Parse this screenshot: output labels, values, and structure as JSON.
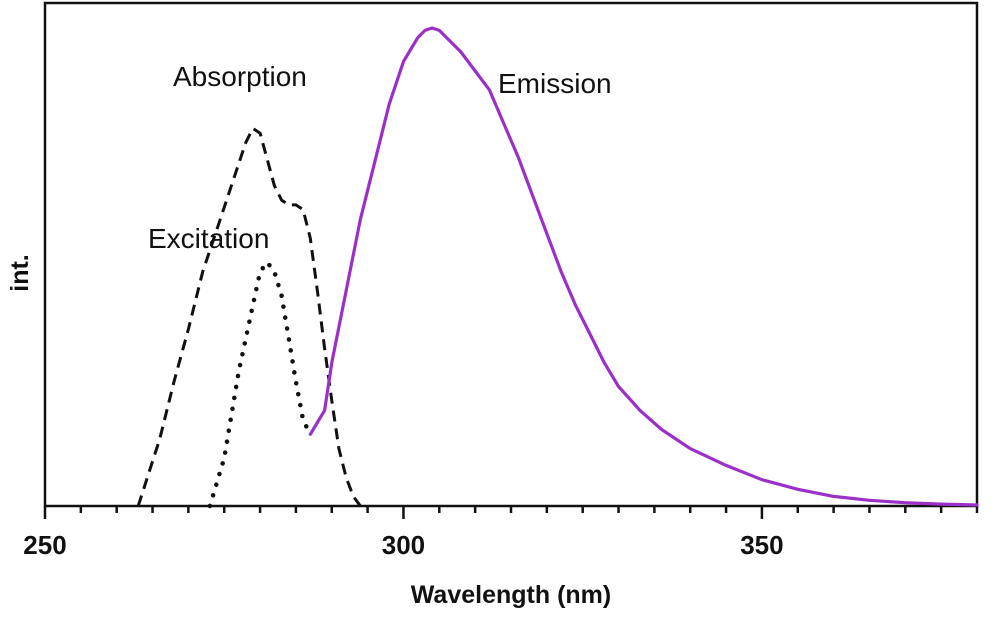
{
  "chart_data": {
    "type": "line",
    "title": "",
    "xlabel": "Wavelength (nm)",
    "ylabel": "int.",
    "xlim": [
      250,
      380
    ],
    "ylim": [
      0,
      1
    ],
    "x_ticks": [
      250,
      300,
      350
    ],
    "x_minor_step": 5,
    "y_ticks": [],
    "grid": false,
    "legend": "none",
    "series": [
      {
        "name": "Absorption",
        "style": "dashed",
        "color": "#111111",
        "x": [
          263,
          266,
          268,
          270,
          272,
          274,
          276,
          278,
          279,
          280,
          282,
          283,
          284,
          285,
          286,
          287,
          288,
          289,
          290,
          291,
          292,
          293,
          294
        ],
        "y": [
          0.0,
          0.14,
          0.26,
          0.37,
          0.49,
          0.58,
          0.67,
          0.76,
          0.79,
          0.78,
          0.67,
          0.64,
          0.63,
          0.63,
          0.62,
          0.56,
          0.45,
          0.33,
          0.22,
          0.12,
          0.06,
          0.02,
          0.0
        ]
      },
      {
        "name": "Excitation",
        "style": "dotted",
        "color": "#111111",
        "x": [
          273,
          275,
          277,
          279,
          280,
          281,
          282,
          283,
          284,
          285,
          286,
          287
        ],
        "y": [
          0.0,
          0.1,
          0.28,
          0.42,
          0.49,
          0.51,
          0.49,
          0.44,
          0.35,
          0.26,
          0.18,
          0.15
        ]
      },
      {
        "name": "Emission",
        "style": "solid",
        "color": "#9b30c8",
        "x": [
          287,
          289,
          290,
          292,
          294,
          296,
          298,
          300,
          302,
          303,
          304,
          305,
          306,
          308,
          310,
          312,
          314,
          316,
          318,
          320,
          322,
          324,
          326,
          328,
          330,
          333,
          336,
          340,
          345,
          350,
          355,
          360,
          365,
          370,
          375,
          380
        ],
        "y": [
          0.15,
          0.2,
          0.3,
          0.45,
          0.6,
          0.72,
          0.84,
          0.93,
          0.98,
          0.995,
          1.0,
          0.995,
          0.98,
          0.95,
          0.91,
          0.87,
          0.8,
          0.73,
          0.65,
          0.57,
          0.49,
          0.42,
          0.36,
          0.3,
          0.25,
          0.2,
          0.16,
          0.12,
          0.085,
          0.055,
          0.035,
          0.02,
          0.012,
          0.007,
          0.004,
          0.002
        ]
      }
    ]
  }
}
